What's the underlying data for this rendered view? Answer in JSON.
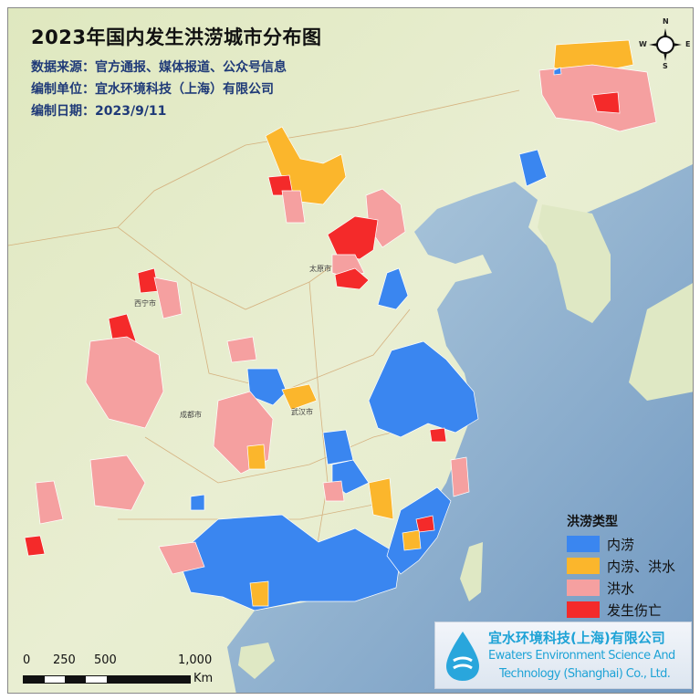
{
  "title": "2023年国内发生洪涝城市分布图",
  "info": {
    "source": "数据来源：官方通报、媒体报道、公众号信息",
    "organization": "编制单位：宜水环境科技（上海）有限公司",
    "date": "编制日期：2023/9/11"
  },
  "legend": {
    "title": "洪涝类型",
    "items": [
      {
        "label": "内涝",
        "color": "#3a86f0"
      },
      {
        "label": "内涝、洪水",
        "color": "#fbb62c"
      },
      {
        "label": "洪水",
        "color": "#f5a0a0"
      },
      {
        "label": "发生伤亡",
        "color": "#f42a2a"
      }
    ]
  },
  "scale_bar": {
    "ticks": [
      "0",
      "250",
      "500",
      "1,000"
    ],
    "unit": "Km"
  },
  "compass": {
    "n": "N",
    "s": "S",
    "e": "E",
    "w": "W"
  },
  "logo": {
    "name_cn": "宜水环境科技(上海)有限公司",
    "name_en_line1": "Ewaters Environment Science And",
    "name_en_line2": "Technology (Shanghai) Co., Ltd."
  },
  "map_labels": {
    "wuhan": "武汉市",
    "chengdu": "成都市",
    "taiyuan": "太原市",
    "xining": "西宁市"
  },
  "colors": {
    "sea": "#9fc0d8",
    "land": "#e6ecc8"
  }
}
